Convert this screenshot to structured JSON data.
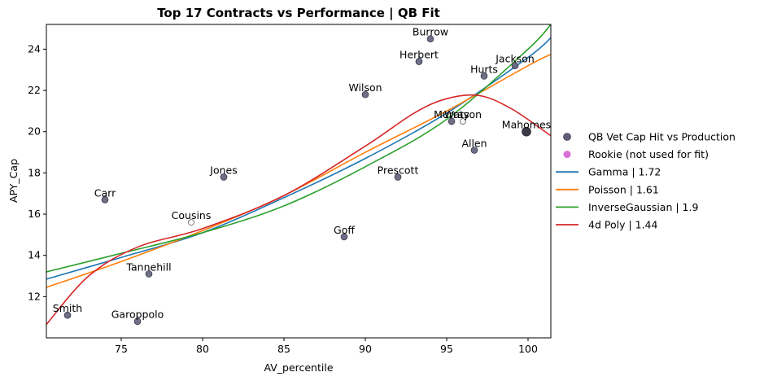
{
  "chart_data": {
    "type": "scatter",
    "title": "Top 17 Contracts vs Performance | QB Fit",
    "xlabel": "AV_percentile",
    "ylabel": "APY_Cap",
    "xlim": [
      70.4,
      101.4
    ],
    "ylim": [
      10.0,
      25.2
    ],
    "xticks": [
      75,
      80,
      85,
      90,
      95,
      100
    ],
    "yticks": [
      12,
      14,
      16,
      18,
      20,
      22,
      24
    ],
    "grid": false,
    "legend_position": "center-right outside",
    "scatter_color": "#5e5e7a",
    "rookie_color": "#da70d6",
    "points": [
      {
        "label": "Burrow",
        "x": 94.0,
        "y": 24.5,
        "rookie": false
      },
      {
        "label": "Herbert",
        "x": 93.3,
        "y": 23.4,
        "rookie": false
      },
      {
        "label": "Jackson",
        "x": 99.2,
        "y": 23.2,
        "rookie": false
      },
      {
        "label": "Hurts",
        "x": 97.3,
        "y": 22.7,
        "rookie": false
      },
      {
        "label": "Wilson",
        "x": 90.0,
        "y": 21.8,
        "rookie": false
      },
      {
        "label": "Murray",
        "x": 95.3,
        "y": 20.5,
        "rookie": false
      },
      {
        "label": "Watson",
        "x": 96.0,
        "y": 20.5,
        "rookie": true
      },
      {
        "label": "Mahomes",
        "x": 99.9,
        "y": 20.0,
        "rookie": false
      },
      {
        "label": "Allen",
        "x": 96.7,
        "y": 19.1,
        "rookie": false
      },
      {
        "label": "Prescott",
        "x": 92.0,
        "y": 17.8,
        "rookie": false
      },
      {
        "label": "Jones",
        "x": 81.3,
        "y": 17.8,
        "rookie": false
      },
      {
        "label": "Carr",
        "x": 74.0,
        "y": 16.7,
        "rookie": false
      },
      {
        "label": "Cousins",
        "x": 79.3,
        "y": 15.6,
        "rookie": true
      },
      {
        "label": "Goff",
        "x": 88.7,
        "y": 14.9,
        "rookie": false
      },
      {
        "label": "Tannehill",
        "x": 76.7,
        "y": 13.1,
        "rookie": false
      },
      {
        "label": "Smith",
        "x": 71.7,
        "y": 11.1,
        "rookie": false
      },
      {
        "label": "Garoppolo",
        "x": 76.0,
        "y": 10.8,
        "rookie": false
      }
    ],
    "series": [
      {
        "name": "QB Vet Cap Hit vs Production",
        "kind": "scatter",
        "color": "#5e5e7a"
      },
      {
        "name": "Rookie (not used for fit)",
        "kind": "scatter",
        "color": "#da70d6"
      },
      {
        "name": "Gamma | 1.72",
        "kind": "line",
        "color": "#1f77b4",
        "x": [
          70.4,
          75,
          80,
          85,
          90,
          95,
          100,
          101.4
        ],
        "y": [
          12.85,
          13.9,
          15.1,
          16.8,
          18.7,
          20.9,
          23.6,
          24.55
        ]
      },
      {
        "name": "Poisson | 1.61",
        "kind": "line",
        "color": "#ff7f0e",
        "x": [
          70.4,
          75,
          80,
          85,
          90,
          95,
          100,
          101.4
        ],
        "y": [
          12.45,
          13.7,
          15.2,
          16.9,
          19.0,
          21.0,
          23.2,
          23.75
        ]
      },
      {
        "name": "InverseGaussian | 1.9",
        "kind": "line",
        "color": "#2ca02c",
        "x": [
          70.4,
          75,
          80,
          85,
          90,
          95,
          100,
          101.4
        ],
        "y": [
          13.2,
          14.1,
          15.1,
          16.4,
          18.3,
          20.6,
          24.0,
          25.2
        ]
      },
      {
        "name": "4d Poly | 1.44",
        "kind": "line",
        "color": "#d62728",
        "x": [
          70.4,
          73,
          76,
          80,
          85,
          90,
          93,
          95,
          97,
          99,
          101.4
        ],
        "y": [
          10.65,
          13.0,
          14.4,
          15.3,
          16.9,
          19.3,
          20.9,
          21.6,
          21.75,
          21.1,
          19.8
        ]
      }
    ]
  }
}
